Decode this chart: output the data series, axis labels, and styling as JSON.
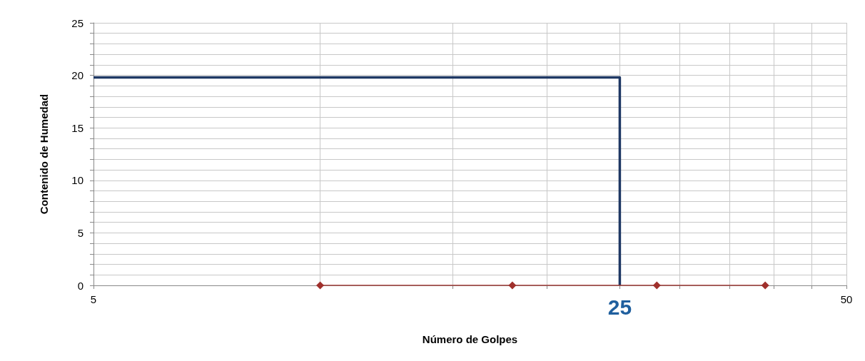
{
  "chart_data": {
    "type": "line",
    "xlabel": "Número de Golpes",
    "ylabel": "Contenido de Humedad",
    "series": [
      {
        "x": [
          5,
          25,
          25
        ],
        "values": [
          19.8,
          19.8,
          0
        ],
        "color": "#1f3864",
        "marker": "none"
      },
      {
        "x": [
          10,
          18,
          28,
          39
        ],
        "values": [
          0,
          0,
          0,
          0
        ],
        "color": "#a0302c",
        "marker": "diamond"
      }
    ],
    "xlim": [
      5,
      50
    ],
    "xticks": [
      5,
      {
        "value": 10,
        "label": null
      },
      {
        "value": 15,
        "label": null
      },
      {
        "value": 20,
        "label": null
      },
      {
        "value": 25,
        "label": null
      },
      {
        "value": 30,
        "label": null
      },
      {
        "value": 35,
        "label": null
      },
      {
        "value": 40,
        "label": null
      },
      {
        "value": 45,
        "label": null
      },
      50
    ],
    "ylim": [
      0,
      25
    ],
    "yticks": [
      0,
      {
        "value": 1,
        "label": null
      },
      {
        "value": 2,
        "label": null
      },
      {
        "value": 3,
        "label": null
      },
      {
        "value": 4,
        "label": null
      },
      5,
      {
        "value": 6,
        "label": null
      },
      {
        "value": 7,
        "label": null
      },
      {
        "value": 8,
        "label": null
      },
      {
        "value": 9,
        "label": null
      },
      10,
      {
        "value": 11,
        "label": null
      },
      {
        "value": 12,
        "label": null
      },
      {
        "value": 13,
        "label": null
      },
      {
        "value": 14,
        "label": null
      },
      15,
      {
        "value": 16,
        "label": null
      },
      {
        "value": 17,
        "label": null
      },
      {
        "value": 18,
        "label": null
      },
      {
        "value": 19,
        "label": null
      },
      20,
      {
        "value": 21,
        "label": null
      },
      {
        "value": 22,
        "label": null
      },
      {
        "value": 23,
        "label": null
      },
      {
        "value": 24,
        "label": null
      },
      25
    ],
    "log": "x",
    "grid": true,
    "annotations": [
      {
        "text": "25",
        "x": 25,
        "y": 0
      }
    ]
  }
}
